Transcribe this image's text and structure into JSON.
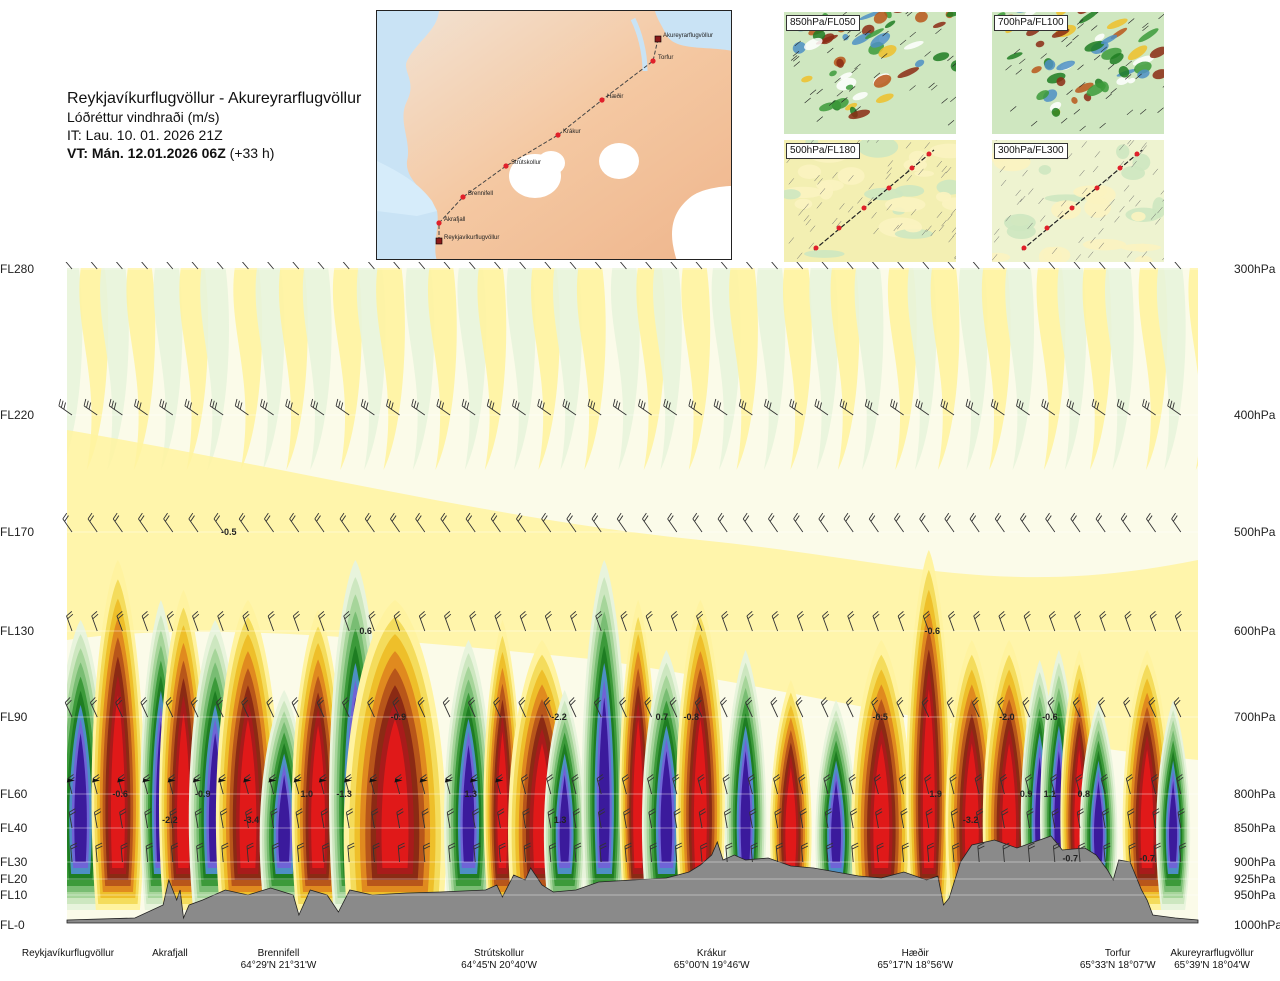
{
  "title": {
    "route": "Reykjavíkurflugvöllur - Akureyrarflugvöllur",
    "quantity": "Lóðréttur vindhraði (m/s)",
    "init_time": "IT: Lau. 10. 01. 2026 21Z",
    "valid_bold": "VT: Mán. 12.01.2026 06Z",
    "valid_offset": " (+33 h)"
  },
  "route_map": {
    "places": [
      {
        "name": "Akureyrarflugvöllur",
        "type": "airport"
      },
      {
        "name": "Torfur",
        "type": "point"
      },
      {
        "name": "Hæðir",
        "type": "point"
      },
      {
        "name": "Krákur",
        "type": "point"
      },
      {
        "name": "Strútskollur",
        "type": "point"
      },
      {
        "name": "Brennifell",
        "type": "point"
      },
      {
        "name": "Akrafjall",
        "type": "point"
      },
      {
        "name": "Reykjavíkurflugvöllur",
        "type": "airport"
      }
    ],
    "colors": {
      "sea": "#c9e3f5",
      "land": "#f3c9a5",
      "ice": "#ffffff",
      "route": "#444444",
      "point": "#e0202a"
    }
  },
  "mini_maps": [
    {
      "label": "850hPa/FL050",
      "style": "wind"
    },
    {
      "label": "700hPa/FL100",
      "style": "wind"
    },
    {
      "label": "500hPa/FL180",
      "style": "track"
    },
    {
      "label": "300hPa/FL300",
      "style": "track"
    }
  ],
  "chart_data": {
    "type": "heatmap",
    "title": "Lóðréttur vindhraði (m/s)",
    "y_left_ticks": [
      "FL280",
      "FL220",
      "FL170",
      "FL130",
      "FL90",
      "FL60",
      "FL40",
      "FL30",
      "FL20",
      "FL10",
      "FL-0"
    ],
    "y_right_ticks": [
      "300hPa",
      "400hPa",
      "500hPa",
      "600hPa",
      "700hPa",
      "800hPa",
      "850hPa",
      "900hPa",
      "925hPa",
      "950hPa",
      "1000hPa"
    ],
    "pressure_levels_hpa": [
      300,
      400,
      500,
      600,
      700,
      800,
      850,
      900,
      925,
      950,
      1000
    ],
    "waypoints": [
      {
        "name": "Reykjavíkurflugvöllur",
        "coord": "",
        "dist": 0.0
      },
      {
        "name": "Akrafjall",
        "coord": "",
        "dist": 0.091
      },
      {
        "name": "Brennifell",
        "coord": "64°29'N 21°31'W",
        "dist": 0.187
      },
      {
        "name": "Strútskollur",
        "coord": "64°45'N 20°40'W",
        "dist": 0.382
      },
      {
        "name": "Krákur",
        "coord": "65°00'N 19°46'W",
        "dist": 0.57
      },
      {
        "name": "Hæðir",
        "coord": "65°17'N 18°56'W",
        "dist": 0.75
      },
      {
        "name": "Torfur",
        "coord": "65°33'N 18°07'W",
        "dist": 0.929
      },
      {
        "name": "Akureyrarflugvöllur",
        "coord": "65°39'N 18°04'W",
        "dist": 1.0
      }
    ],
    "value_labels": [
      {
        "dist": 0.047,
        "p": 800,
        "v": "-0.6"
      },
      {
        "dist": 0.091,
        "p": 838,
        "v": "-2.2"
      },
      {
        "dist": 0.12,
        "p": 800,
        "v": "-0.9"
      },
      {
        "dist": 0.143,
        "p": 500,
        "v": "-0.5"
      },
      {
        "dist": 0.163,
        "p": 838,
        "v": "-3.4"
      },
      {
        "dist": 0.212,
        "p": 800,
        "v": "1.0"
      },
      {
        "dist": 0.245,
        "p": 800,
        "v": "-1.3"
      },
      {
        "dist": 0.264,
        "p": 600,
        "v": "0.6"
      },
      {
        "dist": 0.293,
        "p": 700,
        "v": "-0.9"
      },
      {
        "dist": 0.357,
        "p": 800,
        "v": "1.3"
      },
      {
        "dist": 0.435,
        "p": 700,
        "v": "-2.2"
      },
      {
        "dist": 0.436,
        "p": 838,
        "v": "1.3"
      },
      {
        "dist": 0.526,
        "p": 700,
        "v": "0.7"
      },
      {
        "dist": 0.552,
        "p": 700,
        "v": "-0.8"
      },
      {
        "dist": 0.719,
        "p": 700,
        "v": "-0.5"
      },
      {
        "dist": 0.765,
        "p": 600,
        "v": "-0.6"
      },
      {
        "dist": 0.768,
        "p": 800,
        "v": "1.9"
      },
      {
        "dist": 0.799,
        "p": 838,
        "v": "-3.2"
      },
      {
        "dist": 0.831,
        "p": 700,
        "v": "-2.0"
      },
      {
        "dist": 0.848,
        "p": 800,
        "v": "0.9"
      },
      {
        "dist": 0.869,
        "p": 800,
        "v": "1.1"
      },
      {
        "dist": 0.869,
        "p": 700,
        "v": "-0.6"
      },
      {
        "dist": 0.899,
        "p": 800,
        "v": "0.8"
      },
      {
        "dist": 0.887,
        "p": 895,
        "v": "-0.7"
      },
      {
        "dist": 0.955,
        "p": 895,
        "v": "-0.7"
      }
    ],
    "color_scale": {
      "negative": [
        "#fff3a0",
        "#f4dc5c",
        "#eebf2a",
        "#e08a1f",
        "#b8561a",
        "#8b2a14",
        "#a81b1b",
        "#e01919"
      ],
      "positive": [
        "#e8f4dc",
        "#cde7c0",
        "#a6d59a",
        "#79bd73",
        "#3c9a3a",
        "#1e7d22",
        "#4d8fc4",
        "#6f64d6",
        "#3b1a9c"
      ],
      "neutral": "#fbfbe9",
      "terrain": "#8a8a8a"
    },
    "legend": "none",
    "grid": true
  }
}
